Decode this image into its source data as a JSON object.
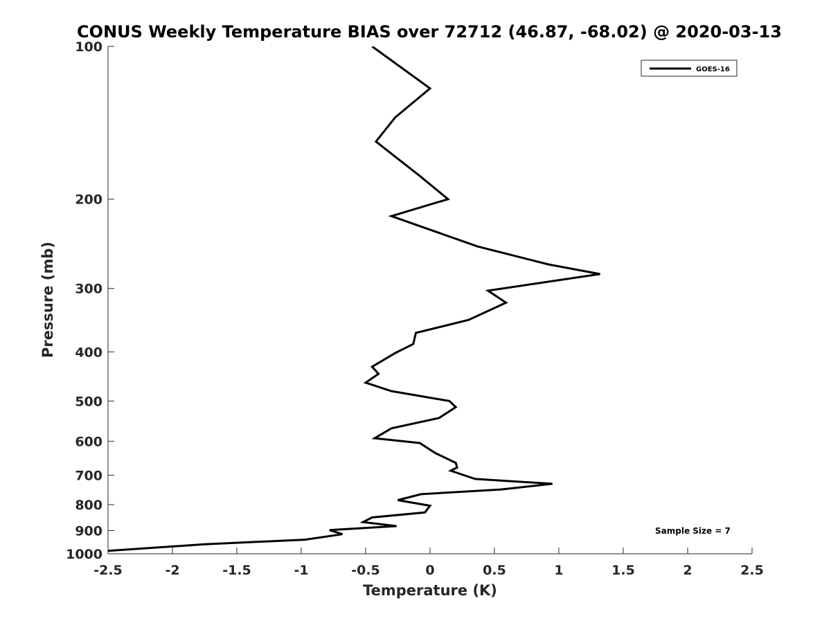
{
  "chart_data": {
    "type": "line",
    "title": "CONUS Weekly Temperature BIAS over 72712 (46.87, -68.02) @ 2020-03-13",
    "xlabel": "Temperature (K)",
    "ylabel": "Pressure (mb)",
    "xlim": [
      -2.5,
      2.5
    ],
    "ylim": [
      100,
      1000
    ],
    "y_scale": "log",
    "y_reversed": true,
    "x_ticks": [
      "-2.5",
      "-2",
      "-1.5",
      "-1",
      "-0.5",
      "0",
      "0.5",
      "1",
      "1.5",
      "2",
      "2.5"
    ],
    "x_tick_values": [
      -2.5,
      -2,
      -1.5,
      -1,
      -0.5,
      0,
      0.5,
      1,
      1.5,
      2,
      2.5
    ],
    "y_ticks": [
      "100",
      "200",
      "300",
      "400",
      "500",
      "600",
      "700",
      "800",
      "900",
      "1000"
    ],
    "y_tick_values": [
      100,
      200,
      300,
      400,
      500,
      600,
      700,
      800,
      900,
      1000
    ],
    "grid": false,
    "legend_position": "top-right",
    "annotation": "Sample Size = 7",
    "series": [
      {
        "name": "GOES-16",
        "color": "#000000",
        "points": [
          [
            -0.45,
            100
          ],
          [
            0.0,
            121
          ],
          [
            -0.27,
            138
          ],
          [
            -0.42,
            154
          ],
          [
            -0.08,
            180
          ],
          [
            0.14,
            200
          ],
          [
            -0.3,
            216
          ],
          [
            0.37,
            248
          ],
          [
            0.92,
            269
          ],
          [
            1.32,
            281
          ],
          [
            0.45,
            303
          ],
          [
            0.59,
            320
          ],
          [
            0.3,
            346
          ],
          [
            -0.11,
            367
          ],
          [
            -0.13,
            386
          ],
          [
            -0.27,
            402
          ],
          [
            -0.45,
            428
          ],
          [
            -0.4,
            442
          ],
          [
            -0.5,
            460
          ],
          [
            -0.3,
            478
          ],
          [
            0.15,
            500
          ],
          [
            0.2,
            514
          ],
          [
            0.07,
            540
          ],
          [
            -0.3,
            566
          ],
          [
            -0.43,
            592
          ],
          [
            -0.08,
            605
          ],
          [
            0.04,
            633
          ],
          [
            0.2,
            662
          ],
          [
            0.21,
            676
          ],
          [
            0.16,
            686
          ],
          [
            0.35,
            712
          ],
          [
            0.95,
            728
          ],
          [
            0.55,
            747
          ],
          [
            -0.07,
            763
          ],
          [
            -0.25,
            784
          ],
          [
            0.0,
            804
          ],
          [
            -0.04,
            829
          ],
          [
            -0.45,
            848
          ],
          [
            -0.52,
            866
          ],
          [
            -0.26,
            882
          ],
          [
            -0.78,
            898
          ],
          [
            -0.68,
            915
          ],
          [
            -0.97,
            938
          ],
          [
            -1.75,
            958
          ],
          [
            -2.5,
            987
          ],
          [
            -2.7,
            1000
          ]
        ]
      }
    ]
  }
}
